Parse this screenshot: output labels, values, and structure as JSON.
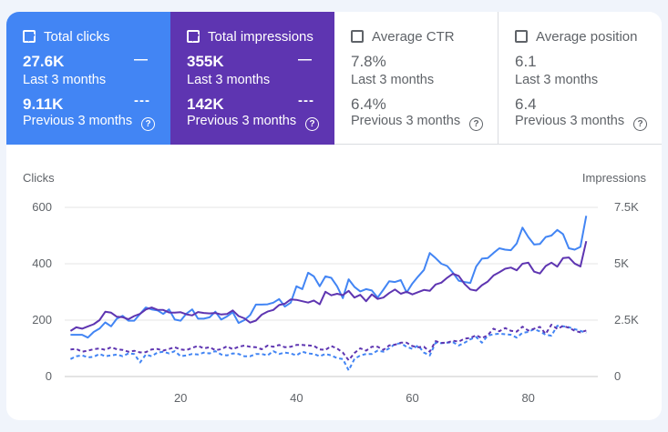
{
  "cards": [
    {
      "title": "Total clicks",
      "checked": true,
      "current_value": "27.6K",
      "current_label": "Last 3 months",
      "current_symbol": "—",
      "previous_value": "9.11K",
      "previous_label": "Previous 3 months",
      "previous_symbol": "---",
      "help": "?"
    },
    {
      "title": "Total impressions",
      "checked": true,
      "current_value": "355K",
      "current_label": "Last 3 months",
      "current_symbol": "—",
      "previous_value": "142K",
      "previous_label": "Previous 3 months",
      "previous_symbol": "---",
      "help": "?"
    },
    {
      "title": "Average CTR",
      "checked": false,
      "current_value": "7.8%",
      "current_label": "Last 3 months",
      "previous_value": "6.4%",
      "previous_label": "Previous 3 months",
      "help": "?"
    },
    {
      "title": "Average position",
      "checked": false,
      "current_value": "6.1",
      "current_label": "Last 3 months",
      "previous_value": "6.4",
      "previous_label": "Previous 3 months",
      "help": "?"
    }
  ],
  "colors": {
    "clicks": "#4285f4",
    "impressions": "#5e35b1"
  },
  "chart_data": {
    "type": "line",
    "ylabel_left": "Clicks",
    "ylabel_right": "Impressions",
    "ylim_left": [
      0,
      600
    ],
    "ylim_right": [
      0,
      7500
    ],
    "yticks_left": [
      "0",
      "200",
      "400",
      "600"
    ],
    "yticks_right": [
      "0",
      "2.5K",
      "5K",
      "7.5K"
    ],
    "xlim": [
      0,
      92
    ],
    "xticks": [
      "20",
      "40",
      "60",
      "80"
    ],
    "grid": true,
    "series": [
      {
        "metric": "clicks",
        "period": "last",
        "style": "solid",
        "values": [
          148,
          148,
          148,
          138,
          158,
          170,
          192,
          178,
          205,
          215,
          198,
          198,
          222,
          245,
          238,
          235,
          222,
          238,
          202,
          198,
          223,
          238,
          205,
          205,
          210,
          230,
          202,
          213,
          228,
          190,
          200,
          218,
          255,
          255,
          256,
          262,
          275,
          248,
          262,
          320,
          310,
          368,
          355,
          320,
          355,
          350,
          320,
          278,
          345,
          318,
          302,
          310,
          305,
          280,
          308,
          338,
          335,
          342,
          298,
          330,
          355,
          378,
          438,
          420,
          400,
          392,
          368,
          340,
          335,
          332,
          390,
          418,
          420,
          438,
          455,
          450,
          448,
          472,
          528,
          495,
          468,
          470,
          495,
          500,
          520,
          505,
          455,
          450,
          460,
          570
        ]
      },
      {
        "metric": "clicks",
        "period": "previous",
        "style": "dashed",
        "values": [
          62,
          72,
          75,
          68,
          70,
          80,
          72,
          75,
          78,
          72,
          82,
          80,
          50,
          78,
          72,
          85,
          88,
          82,
          90,
          72,
          75,
          80,
          78,
          85,
          82,
          90,
          78,
          75,
          82,
          80,
          72,
          72,
          80,
          80,
          75,
          90,
          80,
          85,
          82,
          75,
          88,
          82,
          80,
          72,
          80,
          75,
          65,
          62,
          22,
          62,
          75,
          80,
          80,
          92,
          88,
          100,
          115,
          118,
          105,
          98,
          110,
          85,
          75,
          120,
          118,
          120,
          122,
          110,
          120,
          132,
          140,
          120,
          145,
          150,
          152,
          150,
          148,
          138,
          155,
          158,
          168,
          160,
          148,
          145,
          180,
          178,
          175,
          168,
          162,
          155
        ]
      },
      {
        "metric": "impressions",
        "period": "last",
        "style": "solid",
        "values": [
          2020,
          2180,
          2120,
          2220,
          2320,
          2500,
          2870,
          2830,
          2650,
          2630,
          2540,
          2680,
          2780,
          2970,
          3060,
          2960,
          2950,
          2840,
          2830,
          2850,
          2760,
          2710,
          2860,
          2820,
          2800,
          2820,
          2750,
          2770,
          2930,
          2680,
          2580,
          2390,
          2480,
          2740,
          2880,
          2950,
          3170,
          3230,
          3420,
          3400,
          3340,
          3280,
          3370,
          3200,
          3760,
          3600,
          3670,
          3610,
          3800,
          3500,
          3620,
          3340,
          3640,
          3440,
          3500,
          3700,
          3860,
          3670,
          3760,
          3640,
          3740,
          3840,
          3800,
          4080,
          4160,
          4380,
          4560,
          4460,
          4100,
          3860,
          3810,
          4050,
          4210,
          4480,
          4620,
          4780,
          4830,
          4710,
          5000,
          5050,
          4650,
          4570,
          4900,
          5050,
          4870,
          5250,
          5280,
          5010,
          4880,
          6000
        ]
      },
      {
        "metric": "impressions",
        "period": "previous",
        "style": "dashed",
        "values": [
          1200,
          1220,
          1100,
          1150,
          1210,
          1240,
          1180,
          1300,
          1210,
          1180,
          1100,
          1140,
          1070,
          1080,
          1200,
          1220,
          1150,
          1220,
          1300,
          1200,
          1170,
          1270,
          1360,
          1250,
          1300,
          1170,
          1210,
          1340,
          1210,
          1320,
          1370,
          1320,
          1300,
          1210,
          1370,
          1320,
          1400,
          1300,
          1320,
          1400,
          1400,
          1380,
          1360,
          1200,
          1180,
          1350,
          1240,
          1060,
          720,
          1040,
          1250,
          1150,
          1320,
          1320,
          1180,
          1380,
          1410,
          1500,
          1500,
          1350,
          1300,
          1320,
          1100,
          1570,
          1490,
          1500,
          1590,
          1550,
          1680,
          1710,
          1830,
          1700,
          1830,
          2120,
          2010,
          2150,
          2030,
          1990,
          2210,
          2040,
          2120,
          2200,
          1890,
          2300,
          2110,
          2240,
          2160,
          2030,
          1960,
          2040
        ]
      }
    ]
  }
}
